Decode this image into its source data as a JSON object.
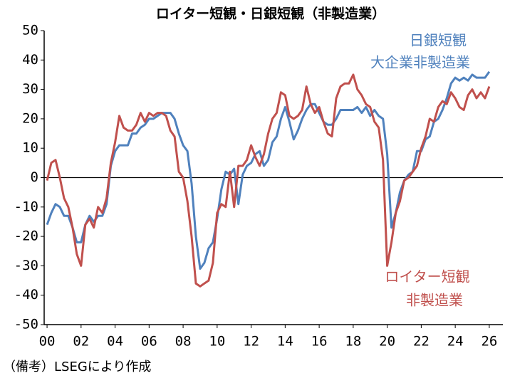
{
  "chart_data": {
    "type": "line",
    "title": "ロイター短観・日銀短観（非製造業）",
    "note": "（備考）LSEGにより作成",
    "annotations": [
      {
        "text": "日銀短観",
        "color": "#4f81bd"
      },
      {
        "text": "大企業非製造業",
        "color": "#4f81bd"
      },
      {
        "text": "ロイター短観",
        "color": "#c0504d"
      },
      {
        "text": "非製造業",
        "color": "#c0504d"
      }
    ],
    "x": [
      2000,
      2000.25,
      2000.5,
      2000.75,
      2001,
      2001.25,
      2001.5,
      2001.75,
      2002,
      2002.25,
      2002.5,
      2002.75,
      2003,
      2003.25,
      2003.5,
      2003.75,
      2004,
      2004.25,
      2004.5,
      2004.75,
      2005,
      2005.25,
      2005.5,
      2005.75,
      2006,
      2006.25,
      2006.5,
      2006.75,
      2007,
      2007.25,
      2007.5,
      2007.75,
      2008,
      2008.25,
      2008.5,
      2008.75,
      2009,
      2009.25,
      2009.5,
      2009.75,
      2010,
      2010.25,
      2010.5,
      2010.75,
      2011,
      2011.25,
      2011.5,
      2011.75,
      2012,
      2012.25,
      2012.5,
      2012.75,
      2013,
      2013.25,
      2013.5,
      2013.75,
      2014,
      2014.25,
      2014.5,
      2014.75,
      2015,
      2015.25,
      2015.5,
      2015.75,
      2016,
      2016.25,
      2016.5,
      2016.75,
      2017,
      2017.25,
      2017.5,
      2017.75,
      2018,
      2018.25,
      2018.5,
      2018.75,
      2019,
      2019.25,
      2019.5,
      2019.75,
      2020,
      2020.25,
      2020.5,
      2020.75,
      2021,
      2021.25,
      2021.5,
      2021.75,
      2022,
      2022.25,
      2022.5,
      2022.75,
      2023,
      2023.25,
      2023.5,
      2023.75,
      2024,
      2024.25,
      2024.5,
      2024.75,
      2025,
      2025.25,
      2025.5,
      2025.75,
      2026
    ],
    "series": [
      {
        "name": "日銀短観 大企業非製造業",
        "color": "#4f81bd",
        "values": [
          -16,
          -12,
          -9,
          -10,
          -13,
          -13,
          -17,
          -22,
          -22,
          -16,
          -13,
          -15,
          -13,
          -13,
          -9,
          4,
          9,
          11,
          11,
          11,
          15,
          15,
          17,
          18,
          20,
          20,
          21,
          22,
          22,
          22,
          20,
          15,
          11,
          9,
          -2,
          -20,
          -31,
          -29,
          -24,
          -22,
          -14,
          -4,
          2,
          1,
          3,
          -9,
          1,
          4,
          5,
          8,
          9,
          4,
          6,
          12,
          14,
          20,
          24,
          19,
          13,
          16,
          20,
          23,
          25,
          25,
          22,
          19,
          18,
          18,
          20,
          23,
          23,
          23,
          23,
          24,
          22,
          24,
          21,
          23,
          21,
          20,
          8,
          -17,
          -12,
          -5,
          -1,
          1,
          2,
          9,
          9,
          13,
          14,
          19,
          20,
          23,
          27,
          32,
          34,
          33,
          34,
          33,
          35,
          34,
          34,
          34,
          36
        ]
      },
      {
        "name": "ロイター短観 非製造業",
        "color": "#c0504d",
        "values": [
          -1,
          5,
          6,
          0,
          -7,
          -10,
          -17,
          -26,
          -30,
          -16,
          -14,
          -17,
          -10,
          -12,
          -7,
          5,
          12,
          21,
          17,
          16,
          16,
          18,
          22,
          19,
          22,
          21,
          22,
          22,
          21,
          16,
          14,
          2,
          0,
          -8,
          -20,
          -36,
          -37,
          -36,
          -35,
          -29,
          -12,
          -9,
          -10,
          2,
          -10,
          4,
          4,
          6,
          11,
          7,
          4,
          8,
          15,
          20,
          22,
          29,
          28,
          21,
          20,
          21,
          23,
          31,
          25,
          22,
          24,
          19,
          15,
          14,
          27,
          31,
          32,
          32,
          35,
          30,
          28,
          25,
          24,
          19,
          17,
          6,
          -30,
          -22,
          -12,
          -8,
          -1,
          0,
          2,
          4,
          10,
          14,
          20,
          19,
          24,
          26,
          25,
          29,
          27,
          24,
          23,
          28,
          30,
          27,
          29,
          27,
          31
        ]
      }
    ],
    "xlim": [
      1999.83,
      2026.8
    ],
    "xticks": [
      {
        "value": 2000,
        "label": "00"
      },
      {
        "value": 2002,
        "label": "02"
      },
      {
        "value": 2004,
        "label": "04"
      },
      {
        "value": 2006,
        "label": "06"
      },
      {
        "value": 2008,
        "label": "08"
      },
      {
        "value": 2010,
        "label": "10"
      },
      {
        "value": 2012,
        "label": "12"
      },
      {
        "value": 2014,
        "label": "14"
      },
      {
        "value": 2016,
        "label": "16"
      },
      {
        "value": 2018,
        "label": "18"
      },
      {
        "value": 2020,
        "label": "20"
      },
      {
        "value": 2022,
        "label": "22"
      },
      {
        "value": 2024,
        "label": "24"
      },
      {
        "value": 2026,
        "label": "26"
      }
    ],
    "ylim": [
      -50,
      50
    ],
    "yticks": [
      -50,
      -40,
      -30,
      -20,
      -10,
      0,
      10,
      20,
      30,
      40,
      50
    ],
    "grid": false
  }
}
